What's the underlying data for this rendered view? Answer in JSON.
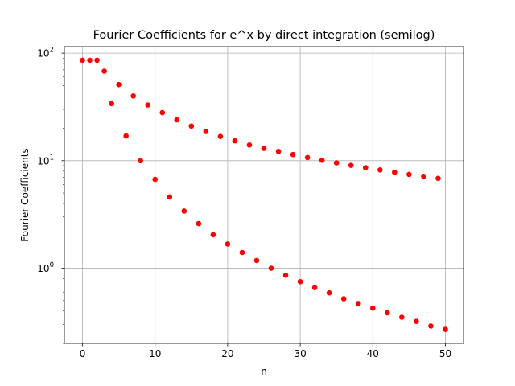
{
  "chart_data": {
    "type": "scatter",
    "title": "Fourier Coefficients for e^x by direct integration (semilog)",
    "xlabel": "n",
    "ylabel": "Fourier Coefficients",
    "xlim": [
      -2.5,
      52.5
    ],
    "ylim": [
      0.2,
      115
    ],
    "yscale": "log",
    "grid": true,
    "marker_color": "#ff0000",
    "x_ticks": [
      0,
      10,
      20,
      30,
      40,
      50
    ],
    "x_tick_labels": [
      "0",
      "10",
      "20",
      "30",
      "40",
      "50"
    ],
    "y_ticks": [
      1,
      10,
      100
    ],
    "y_tick_labels": [
      {
        "base": "10",
        "exp": "0"
      },
      {
        "base": "10",
        "exp": "1"
      },
      {
        "base": "10",
        "exp": "2"
      }
    ],
    "series": [
      {
        "x": [
          0,
          1,
          2,
          3,
          4,
          5,
          6,
          7,
          8,
          9,
          10,
          11,
          12,
          13,
          14,
          15,
          16,
          17,
          18,
          19,
          20,
          21,
          22,
          23,
          24,
          25,
          26,
          27,
          28,
          29,
          30,
          31,
          32,
          33,
          34,
          35,
          36,
          37,
          38,
          39,
          40,
          41,
          42,
          43,
          44,
          45,
          46,
          47,
          48,
          49,
          50
        ],
        "y": [
          86,
          86,
          86,
          68,
          34,
          51,
          17,
          40,
          10,
          33,
          6.7,
          28,
          4.6,
          24,
          3.4,
          21,
          2.6,
          18.7,
          2.05,
          16.8,
          1.68,
          15.3,
          1.4,
          14.0,
          1.18,
          13.0,
          1.0,
          12.2,
          0.86,
          11.4,
          0.75,
          10.7,
          0.66,
          10.1,
          0.59,
          9.55,
          0.52,
          9.05,
          0.47,
          8.6,
          0.425,
          8.2,
          0.385,
          7.8,
          0.35,
          7.45,
          0.32,
          7.15,
          0.29,
          6.85,
          0.27
        ]
      }
    ]
  }
}
